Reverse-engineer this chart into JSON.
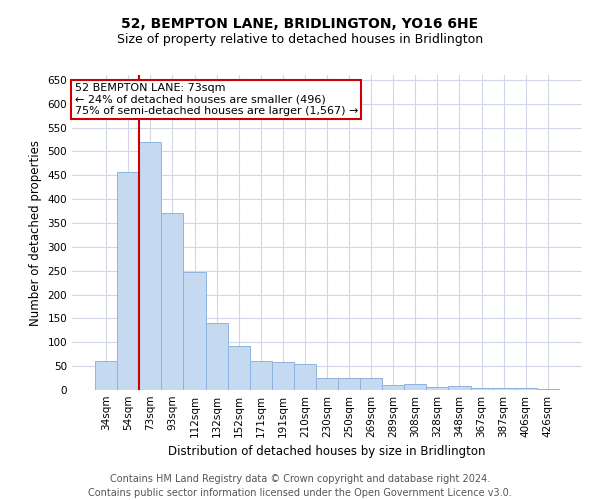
{
  "title": "52, BEMPTON LANE, BRIDLINGTON, YO16 6HE",
  "subtitle": "Size of property relative to detached houses in Bridlington",
  "xlabel": "Distribution of detached houses by size in Bridlington",
  "ylabel": "Number of detached properties",
  "categories": [
    "34sqm",
    "54sqm",
    "73sqm",
    "93sqm",
    "112sqm",
    "132sqm",
    "152sqm",
    "171sqm",
    "191sqm",
    "210sqm",
    "230sqm",
    "250sqm",
    "269sqm",
    "289sqm",
    "308sqm",
    "328sqm",
    "348sqm",
    "367sqm",
    "387sqm",
    "406sqm",
    "426sqm"
  ],
  "values": [
    60,
    457,
    520,
    370,
    248,
    140,
    93,
    61,
    58,
    55,
    25,
    25,
    25,
    11,
    12,
    6,
    8,
    4,
    4,
    4,
    3
  ],
  "bar_color": "#c5d9f1",
  "bar_edgecolor": "#8fb4e3",
  "property_line_idx": 2,
  "property_line_color": "#cc0000",
  "annotation_line1": "52 BEMPTON LANE: 73sqm",
  "annotation_line2": "← 24% of detached houses are smaller (496)",
  "annotation_line3": "75% of semi-detached houses are larger (1,567) →",
  "annotation_box_color": "#ffffff",
  "annotation_box_edgecolor": "#cc0000",
  "ylim": [
    0,
    660
  ],
  "yticks": [
    0,
    50,
    100,
    150,
    200,
    250,
    300,
    350,
    400,
    450,
    500,
    550,
    600,
    650
  ],
  "footer_line1": "Contains HM Land Registry data © Crown copyright and database right 2024.",
  "footer_line2": "Contains public sector information licensed under the Open Government Licence v3.0.",
  "bg_color": "#ffffff",
  "grid_color": "#d0d8e8",
  "title_fontsize": 10,
  "subtitle_fontsize": 9,
  "axis_label_fontsize": 8.5,
  "tick_fontsize": 7.5,
  "annotation_fontsize": 8,
  "footer_fontsize": 7
}
